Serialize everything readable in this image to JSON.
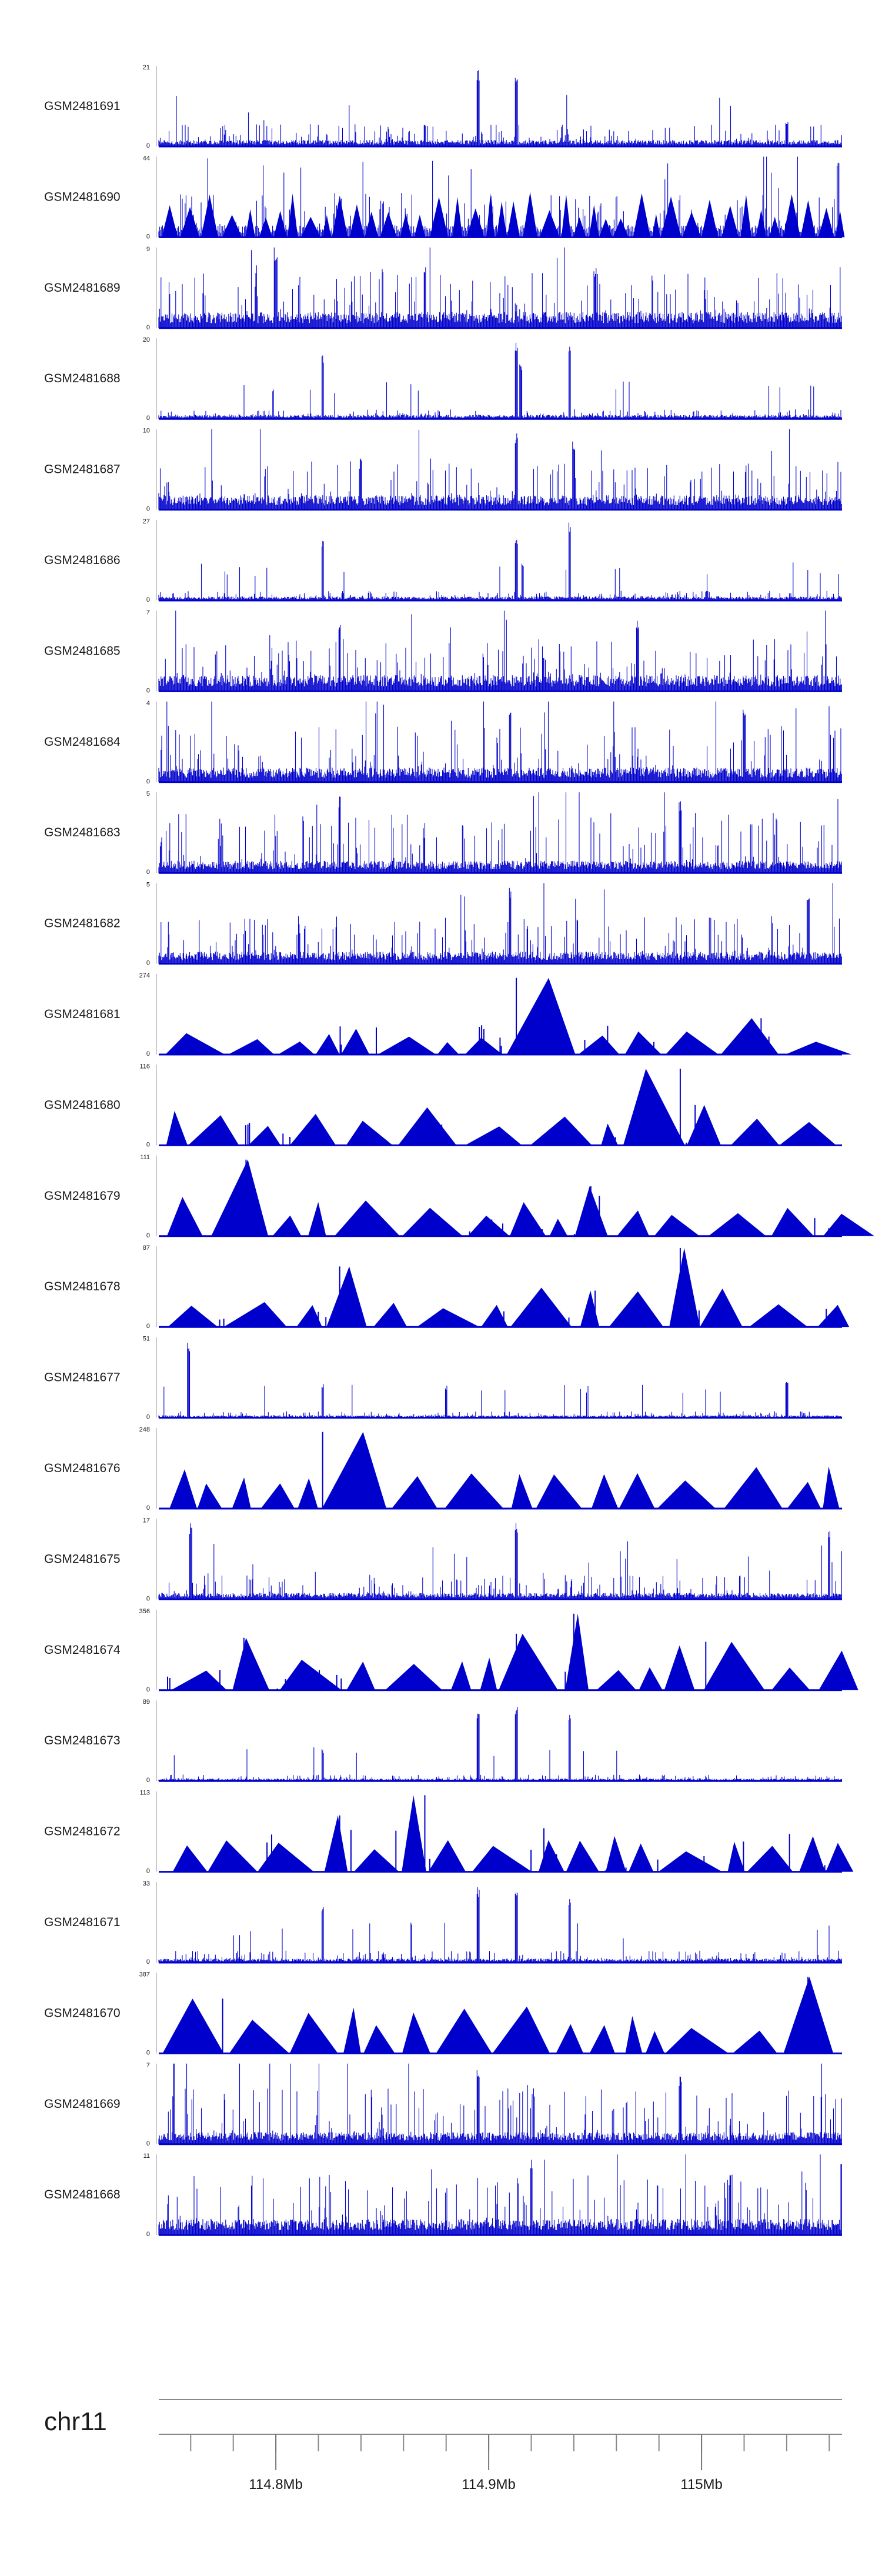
{
  "chart_data": {
    "type": "area",
    "color": "#0000cc",
    "tracks": [
      {
        "name": "GSM2481691",
        "ymax": "21",
        "ymin": "0",
        "shape": "dense",
        "base": 0.08,
        "noise": 0.28,
        "peaks": [
          [
            114.895,
            0.95
          ],
          [
            114.913,
            0.85
          ],
          [
            115.04,
            0.32
          ],
          [
            114.87,
            0.3
          ]
        ]
      },
      {
        "name": "GSM2481690",
        "ymax": "44",
        "ymin": "0",
        "shape": "spiky-tri",
        "base": 0.15,
        "noise": 0.55,
        "peaks": [
          [
            115.064,
            0.95
          ],
          [
            114.96,
            0.55
          ]
        ]
      },
      {
        "name": "GSM2481689",
        "ymax": "9",
        "ymin": "0",
        "shape": "dense",
        "base": 0.2,
        "noise": 0.7,
        "peaks": [
          [
            114.8,
            0.95
          ],
          [
            114.87,
            0.8
          ],
          [
            114.95,
            0.75
          ]
        ]
      },
      {
        "name": "GSM2481688",
        "ymax": "20",
        "ymin": "0",
        "shape": "dense",
        "base": 0.05,
        "noise": 0.12,
        "peaks": [
          [
            114.822,
            0.82
          ],
          [
            114.913,
            0.95
          ],
          [
            114.915,
            0.7
          ],
          [
            114.938,
            0.9
          ]
        ]
      },
      {
        "name": "GSM2481687",
        "ymax": "10",
        "ymin": "0",
        "shape": "dense",
        "base": 0.18,
        "noise": 0.6,
        "peaks": [
          [
            114.913,
            0.95
          ],
          [
            114.94,
            0.85
          ],
          [
            114.84,
            0.7
          ]
        ]
      },
      {
        "name": "GSM2481686",
        "ymax": "27",
        "ymin": "0",
        "shape": "dense",
        "base": 0.05,
        "noise": 0.12,
        "peaks": [
          [
            114.822,
            0.75
          ],
          [
            114.913,
            0.8
          ],
          [
            114.938,
            0.98
          ],
          [
            114.916,
            0.5
          ]
        ]
      },
      {
        "name": "GSM2481685",
        "ymax": "7",
        "ymin": "0",
        "shape": "dense",
        "base": 0.2,
        "noise": 0.65,
        "peaks": [
          [
            114.97,
            0.9
          ],
          [
            114.83,
            0.85
          ]
        ]
      },
      {
        "name": "GSM2481684",
        "ymax": "4",
        "ymin": "0",
        "shape": "dense",
        "base": 0.18,
        "noise": 0.7,
        "peaks": [
          [
            114.91,
            0.95
          ],
          [
            115.02,
            0.9
          ]
        ]
      },
      {
        "name": "GSM2481683",
        "ymax": "5",
        "ymin": "0",
        "shape": "dense",
        "base": 0.15,
        "noise": 0.75,
        "peaks": [
          [
            114.83,
            0.95
          ],
          [
            114.99,
            0.9
          ]
        ]
      },
      {
        "name": "GSM2481682",
        "ymax": "5",
        "ymin": "0",
        "shape": "dense",
        "base": 0.15,
        "noise": 0.6,
        "peaks": [
          [
            114.91,
            0.95
          ],
          [
            115.05,
            0.85
          ]
        ]
      },
      {
        "name": "GSM2481681",
        "ymax": "274",
        "ymin": "0",
        "shape": "tri",
        "base": 0.25,
        "noise": 0.25,
        "peaks": [
          [
            114.913,
            0.95
          ],
          [
            115.028,
            0.45
          ]
        ]
      },
      {
        "name": "GSM2481680",
        "ymax": "116",
        "ymin": "0",
        "shape": "tri",
        "base": 0.35,
        "noise": 0.2,
        "peaks": [
          [
            114.99,
            0.95
          ],
          [
            114.997,
            0.5
          ]
        ]
      },
      {
        "name": "GSM2481679",
        "ymax": "111",
        "ymin": "0",
        "shape": "tri",
        "base": 0.35,
        "noise": 0.15,
        "peaks": [
          [
            114.786,
            0.95
          ],
          [
            114.948,
            0.62
          ],
          [
            114.952,
            0.5
          ]
        ]
      },
      {
        "name": "GSM2481678",
        "ymax": "87",
        "ymin": "0",
        "shape": "tri",
        "base": 0.35,
        "noise": 0.15,
        "peaks": [
          [
            114.83,
            0.75
          ],
          [
            114.99,
            0.98
          ],
          [
            114.95,
            0.45
          ]
        ]
      },
      {
        "name": "GSM2481677",
        "ymax": "51",
        "ymin": "0",
        "shape": "dense",
        "base": 0.03,
        "noise": 0.08,
        "peaks": [
          [
            114.759,
            0.95
          ],
          [
            114.822,
            0.42
          ],
          [
            115.04,
            0.5
          ],
          [
            114.88,
            0.4
          ]
        ]
      },
      {
        "name": "GSM2481676",
        "ymax": "248",
        "ymin": "0",
        "shape": "tri",
        "base": 0.45,
        "noise": 0.1,
        "peaks": [
          [
            114.822,
            0.95
          ]
        ]
      },
      {
        "name": "GSM2481675",
        "ymax": "17",
        "ymin": "0",
        "shape": "dense",
        "base": 0.08,
        "noise": 0.3,
        "peaks": [
          [
            114.76,
            0.95
          ],
          [
            114.913,
            0.95
          ],
          [
            115.06,
            0.85
          ]
        ]
      },
      {
        "name": "GSM2481674",
        "ymax": "356",
        "ymin": "0",
        "shape": "tri",
        "base": 0.4,
        "noise": 0.2,
        "peaks": [
          [
            114.94,
            0.95
          ],
          [
            114.785,
            0.65
          ],
          [
            114.913,
            0.7
          ],
          [
            115.002,
            0.6
          ]
        ]
      },
      {
        "name": "GSM2481673",
        "ymax": "89",
        "ymin": "0",
        "shape": "dense",
        "base": 0.03,
        "noise": 0.08,
        "peaks": [
          [
            114.913,
            0.95
          ],
          [
            114.895,
            0.88
          ],
          [
            114.938,
            0.85
          ],
          [
            114.822,
            0.4
          ]
        ]
      },
      {
        "name": "GSM2481672",
        "ymax": "113",
        "ymin": "0",
        "shape": "tri",
        "base": 0.35,
        "noise": 0.4,
        "peaks": [
          [
            114.87,
            0.95
          ],
          [
            114.83,
            0.7
          ]
        ]
      },
      {
        "name": "GSM2481671",
        "ymax": "33",
        "ymin": "0",
        "shape": "dense",
        "base": 0.05,
        "noise": 0.15,
        "peaks": [
          [
            114.895,
            0.95
          ],
          [
            114.913,
            0.95
          ],
          [
            114.938,
            0.8
          ],
          [
            114.822,
            0.75
          ]
        ]
      },
      {
        "name": "GSM2481670",
        "ymax": "387",
        "ymin": "0",
        "shape": "tri",
        "base": 0.45,
        "noise": 0.05,
        "peaks": [
          [
            114.775,
            0.68
          ],
          [
            115.05,
            0.95
          ]
        ]
      },
      {
        "name": "GSM2481669",
        "ymax": "7",
        "ymin": "0",
        "shape": "dense",
        "base": 0.15,
        "noise": 0.7,
        "peaks": [
          [
            114.895,
            0.95
          ],
          [
            114.99,
            0.85
          ]
        ]
      },
      {
        "name": "GSM2481668",
        "ymax": "11",
        "ymin": "0",
        "shape": "dense",
        "base": 0.2,
        "noise": 0.75,
        "peaks": [
          [
            114.92,
            0.95
          ],
          [
            115.066,
            0.9
          ]
        ]
      }
    ],
    "axis": {
      "chromosome": "chr11",
      "range_mb": [
        114.745,
        115.066
      ],
      "major_ticks": [
        {
          "value": 114.8,
          "label": "114.8Mb"
        },
        {
          "value": 114.9,
          "label": "114.9Mb"
        },
        {
          "value": 115.0,
          "label": "115Mb"
        }
      ],
      "minor_step_mb": 0.02
    }
  }
}
